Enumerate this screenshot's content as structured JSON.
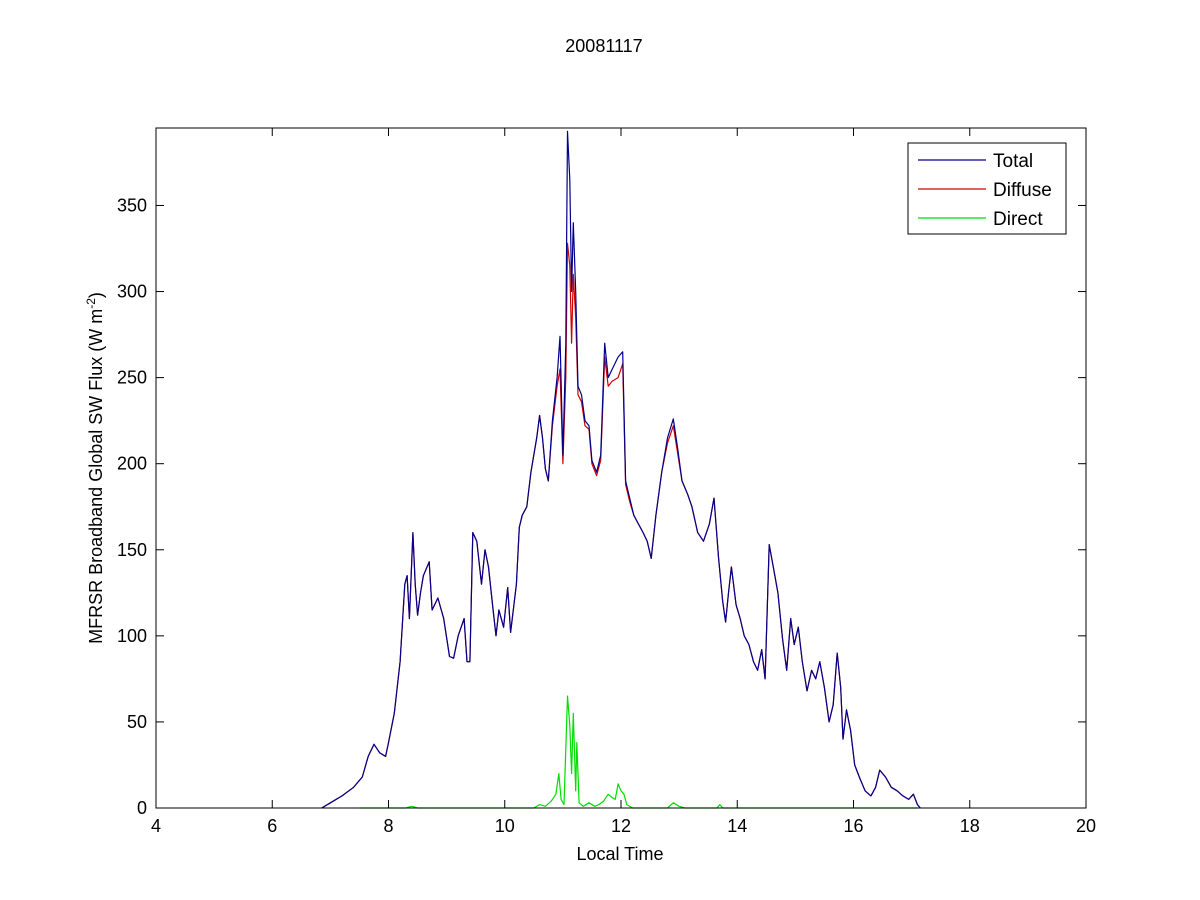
{
  "chart_data": {
    "type": "line",
    "title": "20081117",
    "xlabel": "Local Time",
    "ylabel": "MFRSR Broadband Global SW Flux (W m",
    "ylabel_sup": "-2",
    "ylabel_close": ")",
    "xlim": [
      4,
      20
    ],
    "ylim": [
      0,
      395
    ],
    "xticks": [
      4,
      6,
      8,
      10,
      12,
      14,
      16,
      18,
      20
    ],
    "yticks": [
      0,
      50,
      100,
      150,
      200,
      250,
      300,
      350
    ],
    "grid": false,
    "legend_position": "top-right",
    "series": [
      {
        "name": "Total",
        "color": "#00008b",
        "points": [
          [
            6.85,
            0
          ],
          [
            7.0,
            3
          ],
          [
            7.2,
            7
          ],
          [
            7.4,
            12
          ],
          [
            7.55,
            18
          ],
          [
            7.65,
            30
          ],
          [
            7.75,
            37
          ],
          [
            7.85,
            32
          ],
          [
            7.95,
            30
          ],
          [
            8.0,
            38
          ],
          [
            8.1,
            55
          ],
          [
            8.2,
            85
          ],
          [
            8.28,
            130
          ],
          [
            8.32,
            135
          ],
          [
            8.36,
            110
          ],
          [
            8.42,
            160
          ],
          [
            8.46,
            130
          ],
          [
            8.5,
            112
          ],
          [
            8.55,
            125
          ],
          [
            8.6,
            135
          ],
          [
            8.7,
            143
          ],
          [
            8.75,
            115
          ],
          [
            8.85,
            122
          ],
          [
            8.95,
            110
          ],
          [
            9.05,
            88
          ],
          [
            9.12,
            87
          ],
          [
            9.2,
            100
          ],
          [
            9.3,
            110
          ],
          [
            9.35,
            85
          ],
          [
            9.4,
            85
          ],
          [
            9.45,
            160
          ],
          [
            9.52,
            155
          ],
          [
            9.6,
            130
          ],
          [
            9.66,
            150
          ],
          [
            9.72,
            140
          ],
          [
            9.8,
            115
          ],
          [
            9.85,
            100
          ],
          [
            9.9,
            115
          ],
          [
            9.98,
            105
          ],
          [
            10.05,
            128
          ],
          [
            10.1,
            102
          ],
          [
            10.2,
            130
          ],
          [
            10.25,
            163
          ],
          [
            10.3,
            170
          ],
          [
            10.38,
            175
          ],
          [
            10.45,
            195
          ],
          [
            10.55,
            215
          ],
          [
            10.6,
            228
          ],
          [
            10.65,
            215
          ],
          [
            10.7,
            197
          ],
          [
            10.75,
            190
          ],
          [
            10.82,
            225
          ],
          [
            10.9,
            250
          ],
          [
            10.95,
            274
          ],
          [
            11.0,
            205
          ],
          [
            11.05,
            270
          ],
          [
            11.08,
            393
          ],
          [
            11.12,
            365
          ],
          [
            11.15,
            300
          ],
          [
            11.18,
            340
          ],
          [
            11.22,
            300
          ],
          [
            11.26,
            245
          ],
          [
            11.32,
            240
          ],
          [
            11.38,
            225
          ],
          [
            11.45,
            222
          ],
          [
            11.5,
            202
          ],
          [
            11.58,
            195
          ],
          [
            11.65,
            205
          ],
          [
            11.72,
            270
          ],
          [
            11.78,
            250
          ],
          [
            11.85,
            255
          ],
          [
            11.95,
            262
          ],
          [
            12.03,
            265
          ],
          [
            12.08,
            190
          ],
          [
            12.15,
            180
          ],
          [
            12.22,
            170
          ],
          [
            12.3,
            165
          ],
          [
            12.38,
            160
          ],
          [
            12.45,
            155
          ],
          [
            12.52,
            145
          ],
          [
            12.6,
            170
          ],
          [
            12.7,
            195
          ],
          [
            12.8,
            215
          ],
          [
            12.9,
            226
          ],
          [
            12.97,
            210
          ],
          [
            13.05,
            190
          ],
          [
            13.15,
            182
          ],
          [
            13.22,
            175
          ],
          [
            13.32,
            160
          ],
          [
            13.42,
            155
          ],
          [
            13.52,
            165
          ],
          [
            13.6,
            180
          ],
          [
            13.68,
            145
          ],
          [
            13.75,
            120
          ],
          [
            13.8,
            108
          ],
          [
            13.85,
            125
          ],
          [
            13.9,
            140
          ],
          [
            13.98,
            118
          ],
          [
            14.05,
            110
          ],
          [
            14.12,
            100
          ],
          [
            14.2,
            95
          ],
          [
            14.28,
            85
          ],
          [
            14.35,
            80
          ],
          [
            14.42,
            92
          ],
          [
            14.48,
            75
          ],
          [
            14.55,
            153
          ],
          [
            14.62,
            140
          ],
          [
            14.7,
            125
          ],
          [
            14.78,
            98
          ],
          [
            14.85,
            80
          ],
          [
            14.92,
            110
          ],
          [
            14.98,
            95
          ],
          [
            15.05,
            105
          ],
          [
            15.12,
            85
          ],
          [
            15.2,
            68
          ],
          [
            15.28,
            80
          ],
          [
            15.35,
            75
          ],
          [
            15.42,
            85
          ],
          [
            15.5,
            70
          ],
          [
            15.58,
            50
          ],
          [
            15.65,
            60
          ],
          [
            15.72,
            90
          ],
          [
            15.78,
            70
          ],
          [
            15.82,
            40
          ],
          [
            15.88,
            57
          ],
          [
            15.95,
            45
          ],
          [
            16.02,
            25
          ],
          [
            16.1,
            18
          ],
          [
            16.2,
            10
          ],
          [
            16.3,
            7
          ],
          [
            16.38,
            12
          ],
          [
            16.45,
            22
          ],
          [
            16.55,
            18
          ],
          [
            16.65,
            12
          ],
          [
            16.75,
            10
          ],
          [
            16.85,
            7
          ],
          [
            16.95,
            5
          ],
          [
            17.03,
            8
          ],
          [
            17.1,
            2
          ],
          [
            17.15,
            0
          ]
        ]
      },
      {
        "name": "Diffuse",
        "color": "#d00000",
        "points": [
          [
            6.85,
            0
          ],
          [
            7.0,
            3
          ],
          [
            7.2,
            7
          ],
          [
            7.4,
            12
          ],
          [
            7.55,
            18
          ],
          [
            7.65,
            30
          ],
          [
            7.75,
            37
          ],
          [
            7.85,
            32
          ],
          [
            7.95,
            30
          ],
          [
            8.0,
            38
          ],
          [
            8.1,
            55
          ],
          [
            8.2,
            85
          ],
          [
            8.28,
            130
          ],
          [
            8.32,
            135
          ],
          [
            8.36,
            110
          ],
          [
            8.42,
            160
          ],
          [
            8.46,
            130
          ],
          [
            8.5,
            112
          ],
          [
            8.55,
            125
          ],
          [
            8.6,
            135
          ],
          [
            8.7,
            143
          ],
          [
            8.75,
            115
          ],
          [
            8.85,
            122
          ],
          [
            8.95,
            110
          ],
          [
            9.05,
            88
          ],
          [
            9.12,
            87
          ],
          [
            9.2,
            100
          ],
          [
            9.3,
            110
          ],
          [
            9.35,
            85
          ],
          [
            9.4,
            85
          ],
          [
            9.45,
            160
          ],
          [
            9.52,
            155
          ],
          [
            9.6,
            130
          ],
          [
            9.66,
            150
          ],
          [
            9.72,
            140
          ],
          [
            9.8,
            115
          ],
          [
            9.85,
            100
          ],
          [
            9.9,
            115
          ],
          [
            9.98,
            105
          ],
          [
            10.05,
            128
          ],
          [
            10.1,
            102
          ],
          [
            10.2,
            130
          ],
          [
            10.25,
            163
          ],
          [
            10.3,
            170
          ],
          [
            10.38,
            175
          ],
          [
            10.45,
            195
          ],
          [
            10.55,
            215
          ],
          [
            10.6,
            228
          ],
          [
            10.65,
            215
          ],
          [
            10.7,
            197
          ],
          [
            10.75,
            190
          ],
          [
            10.82,
            222
          ],
          [
            10.9,
            245
          ],
          [
            10.95,
            255
          ],
          [
            11.0,
            200
          ],
          [
            11.05,
            250
          ],
          [
            11.08,
            328
          ],
          [
            11.12,
            315
          ],
          [
            11.15,
            270
          ],
          [
            11.18,
            310
          ],
          [
            11.22,
            285
          ],
          [
            11.26,
            240
          ],
          [
            11.32,
            236
          ],
          [
            11.38,
            222
          ],
          [
            11.45,
            220
          ],
          [
            11.5,
            200
          ],
          [
            11.58,
            193
          ],
          [
            11.65,
            202
          ],
          [
            11.72,
            262
          ],
          [
            11.78,
            245
          ],
          [
            11.85,
            248
          ],
          [
            11.95,
            250
          ],
          [
            12.03,
            258
          ],
          [
            12.08,
            188
          ],
          [
            12.15,
            178
          ],
          [
            12.22,
            170
          ],
          [
            12.3,
            165
          ],
          [
            12.38,
            160
          ],
          [
            12.45,
            155
          ],
          [
            12.52,
            145
          ],
          [
            12.6,
            170
          ],
          [
            12.7,
            195
          ],
          [
            12.8,
            212
          ],
          [
            12.9,
            222
          ],
          [
            12.97,
            207
          ],
          [
            13.05,
            190
          ],
          [
            13.15,
            182
          ],
          [
            13.22,
            175
          ],
          [
            13.32,
            160
          ],
          [
            13.42,
            155
          ],
          [
            13.52,
            165
          ],
          [
            13.6,
            180
          ],
          [
            13.68,
            145
          ],
          [
            13.75,
            120
          ],
          [
            13.8,
            108
          ],
          [
            13.85,
            125
          ],
          [
            13.9,
            140
          ],
          [
            13.98,
            118
          ],
          [
            14.05,
            110
          ],
          [
            14.12,
            100
          ],
          [
            14.2,
            95
          ],
          [
            14.28,
            85
          ],
          [
            14.35,
            80
          ],
          [
            14.42,
            92
          ],
          [
            14.48,
            75
          ],
          [
            14.55,
            153
          ],
          [
            14.62,
            140
          ],
          [
            14.7,
            125
          ],
          [
            14.78,
            98
          ],
          [
            14.85,
            80
          ],
          [
            14.92,
            110
          ],
          [
            14.98,
            95
          ],
          [
            15.05,
            105
          ],
          [
            15.12,
            85
          ],
          [
            15.2,
            68
          ],
          [
            15.28,
            80
          ],
          [
            15.35,
            75
          ],
          [
            15.42,
            85
          ],
          [
            15.5,
            70
          ],
          [
            15.58,
            50
          ],
          [
            15.65,
            60
          ],
          [
            15.72,
            90
          ],
          [
            15.78,
            70
          ],
          [
            15.82,
            40
          ],
          [
            15.88,
            57
          ],
          [
            15.95,
            45
          ],
          [
            16.02,
            25
          ],
          [
            16.1,
            18
          ],
          [
            16.2,
            10
          ],
          [
            16.3,
            7
          ],
          [
            16.38,
            12
          ],
          [
            16.45,
            22
          ],
          [
            16.55,
            18
          ],
          [
            16.65,
            12
          ],
          [
            16.75,
            10
          ],
          [
            16.85,
            7
          ],
          [
            16.95,
            5
          ],
          [
            17.03,
            8
          ],
          [
            17.1,
            2
          ],
          [
            17.15,
            0
          ]
        ]
      },
      {
        "name": "Direct",
        "color": "#00dd00",
        "points": [
          [
            7.5,
            0
          ],
          [
            8.3,
            0
          ],
          [
            8.4,
            1
          ],
          [
            8.5,
            0
          ],
          [
            10.5,
            0
          ],
          [
            10.6,
            2
          ],
          [
            10.7,
            1
          ],
          [
            10.8,
            4
          ],
          [
            10.88,
            8
          ],
          [
            10.93,
            20
          ],
          [
            10.97,
            5
          ],
          [
            11.02,
            2
          ],
          [
            11.08,
            65
          ],
          [
            11.12,
            48
          ],
          [
            11.15,
            20
          ],
          [
            11.18,
            55
          ],
          [
            11.22,
            10
          ],
          [
            11.24,
            38
          ],
          [
            11.28,
            3
          ],
          [
            11.35,
            1
          ],
          [
            11.45,
            3
          ],
          [
            11.55,
            1
          ],
          [
            11.62,
            2
          ],
          [
            11.7,
            4
          ],
          [
            11.78,
            8
          ],
          [
            11.85,
            6
          ],
          [
            11.9,
            5
          ],
          [
            11.95,
            14
          ],
          [
            12.0,
            10
          ],
          [
            12.05,
            8
          ],
          [
            12.1,
            2
          ],
          [
            12.2,
            0
          ],
          [
            12.8,
            0
          ],
          [
            12.9,
            3
          ],
          [
            13.0,
            1
          ],
          [
            13.1,
            0
          ],
          [
            13.65,
            0
          ],
          [
            13.7,
            2
          ],
          [
            13.75,
            0
          ],
          [
            17.1,
            0
          ]
        ]
      }
    ]
  }
}
